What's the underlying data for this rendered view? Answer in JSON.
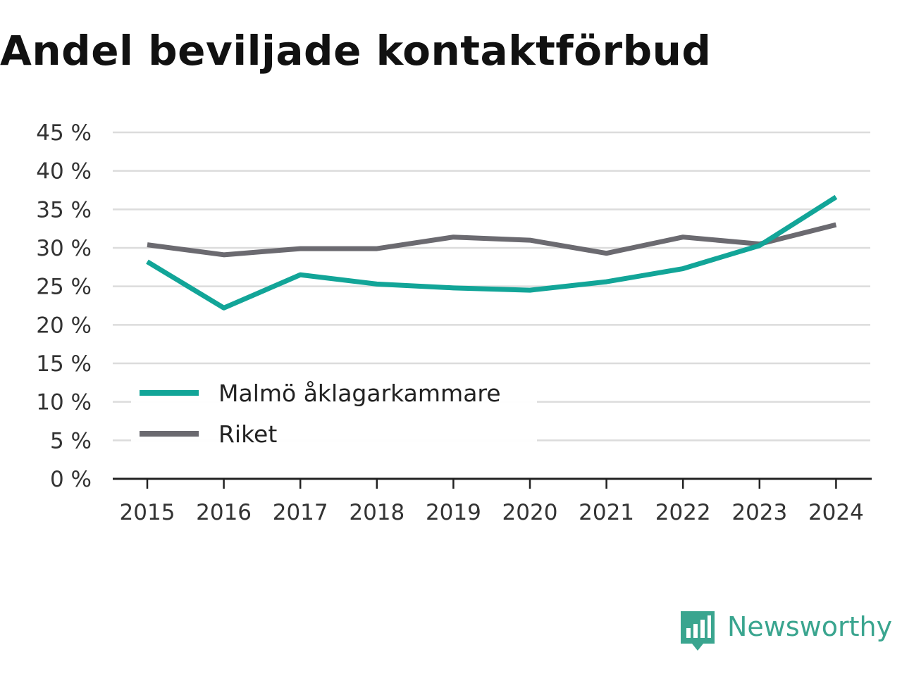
{
  "chart_data": {
    "type": "line",
    "title": "Andel beviljade kontaktförbud",
    "xlabel": "",
    "ylabel": "",
    "x": [
      "2015",
      "2016",
      "2017",
      "2018",
      "2019",
      "2020",
      "2021",
      "2022",
      "2023",
      "2024"
    ],
    "yticks": [
      "0 %",
      "5 %",
      "10 %",
      "15 %",
      "20 %",
      "25 %",
      "30 %",
      "35 %",
      "40 %",
      "45 %"
    ],
    "ylim": [
      0,
      45
    ],
    "grid": true,
    "legend_position": "bottom-left",
    "series": [
      {
        "name": "Malmö åklagarkammare",
        "color": "#12a598",
        "values": [
          28.2,
          22.2,
          26.5,
          25.3,
          24.8,
          24.5,
          25.6,
          27.3,
          30.3,
          36.6
        ]
      },
      {
        "name": "Riket",
        "color": "#6b6a70",
        "values": [
          30.4,
          29.1,
          29.9,
          29.9,
          31.4,
          31.0,
          29.3,
          31.4,
          30.5,
          33.0
        ]
      }
    ]
  },
  "branding": {
    "logo_text": "Newsworthy",
    "logo_icon": "bar-chart-speech-bubble-icon",
    "logo_color": "#3aa58f"
  }
}
